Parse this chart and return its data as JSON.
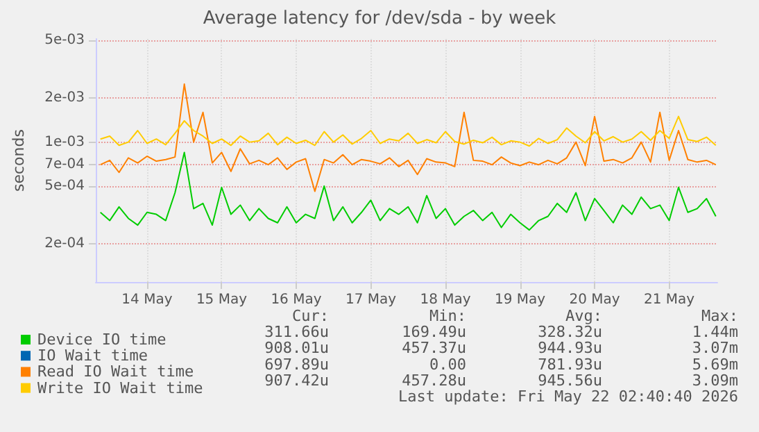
{
  "chart_data": {
    "type": "line",
    "title": "Average latency for /dev/sda - by week",
    "ylabel": "seconds",
    "log": "y",
    "grid": true,
    "legend": "bottom left",
    "marker": "none",
    "line_style": "solid",
    "x": [
      "2026-05-13T21:00",
      "2026-05-14T00:00",
      "2026-05-14T03:00",
      "2026-05-14T06:00",
      "2026-05-14T09:00",
      "2026-05-14T12:00",
      "2026-05-14T15:00",
      "2026-05-14T18:00",
      "2026-05-14T21:00",
      "2026-05-15T00:00",
      "2026-05-15T03:00",
      "2026-05-15T06:00",
      "2026-05-15T09:00",
      "2026-05-15T12:00",
      "2026-05-15T15:00",
      "2026-05-15T18:00",
      "2026-05-15T21:00",
      "2026-05-16T00:00",
      "2026-05-16T03:00",
      "2026-05-16T06:00",
      "2026-05-16T09:00",
      "2026-05-16T12:00",
      "2026-05-16T15:00",
      "2026-05-16T18:00",
      "2026-05-16T21:00",
      "2026-05-17T00:00",
      "2026-05-17T03:00",
      "2026-05-17T06:00",
      "2026-05-17T09:00",
      "2026-05-17T12:00",
      "2026-05-17T15:00",
      "2026-05-17T18:00",
      "2026-05-17T21:00",
      "2026-05-18T00:00",
      "2026-05-18T03:00",
      "2026-05-18T06:00",
      "2026-05-18T09:00",
      "2026-05-18T12:00",
      "2026-05-18T15:00",
      "2026-05-18T18:00",
      "2026-05-18T21:00",
      "2026-05-19T00:00",
      "2026-05-19T03:00",
      "2026-05-19T06:00",
      "2026-05-19T09:00",
      "2026-05-19T12:00",
      "2026-05-19T15:00",
      "2026-05-19T18:00",
      "2026-05-19T21:00",
      "2026-05-20T00:00",
      "2026-05-20T03:00",
      "2026-05-20T06:00",
      "2026-05-20T09:00",
      "2026-05-20T12:00",
      "2026-05-20T15:00",
      "2026-05-20T18:00",
      "2026-05-20T21:00",
      "2026-05-21T00:00",
      "2026-05-21T03:00",
      "2026-05-21T06:00",
      "2026-05-21T09:00",
      "2026-05-21T12:00",
      "2026-05-21T15:00",
      "2026-05-21T18:00",
      "2026-05-21T21:00",
      "2026-05-22T00:00",
      "2026-05-22T03:00"
    ],
    "xlim": [
      "2026-05-13T19:30",
      "2026-05-22T03:30"
    ],
    "xticks": [
      {
        "value": "2026-05-14T12:00",
        "label": "14 May"
      },
      {
        "value": "2026-05-15T12:00",
        "label": "15 May"
      },
      {
        "value": "2026-05-16T12:00",
        "label": "16 May"
      },
      {
        "value": "2026-05-17T12:00",
        "label": "17 May"
      },
      {
        "value": "2026-05-18T12:00",
        "label": "18 May"
      },
      {
        "value": "2026-05-19T12:00",
        "label": "19 May"
      },
      {
        "value": "2026-05-20T12:00",
        "label": "20 May"
      },
      {
        "value": "2026-05-21T12:00",
        "label": "21 May"
      }
    ],
    "ylim": [
      0.00011,
      0.0051
    ],
    "yticks": [
      {
        "value": 0.0002,
        "label": "2e-04"
      },
      {
        "value": 0.0005,
        "label": "5e-04"
      },
      {
        "value": 0.0007,
        "label": "7e-04"
      },
      {
        "value": 0.001,
        "label": "1e-03"
      },
      {
        "value": 0.002,
        "label": "2e-03"
      },
      {
        "value": 0.005,
        "label": "5e-03"
      }
    ],
    "series": [
      {
        "name": "Device IO time",
        "color": "#00cc00",
        "values": [
          0.00033,
          0.00029,
          0.00036,
          0.0003,
          0.00027,
          0.00033,
          0.00032,
          0.00029,
          0.00045,
          0.00085,
          0.00035,
          0.00038,
          0.00027,
          0.00049,
          0.00032,
          0.00037,
          0.00029,
          0.00035,
          0.0003,
          0.00028,
          0.00036,
          0.00028,
          0.00032,
          0.0003,
          0.0005,
          0.00029,
          0.00036,
          0.00028,
          0.00033,
          0.0004,
          0.00029,
          0.00035,
          0.00032,
          0.00036,
          0.00028,
          0.00043,
          0.0003,
          0.00035,
          0.00027,
          0.00031,
          0.00034,
          0.00029,
          0.00033,
          0.00026,
          0.00032,
          0.00028,
          0.00025,
          0.00029,
          0.00031,
          0.00038,
          0.00033,
          0.00045,
          0.00029,
          0.00041,
          0.00034,
          0.00028,
          0.00037,
          0.00032,
          0.00042,
          0.00035,
          0.00037,
          0.00029,
          0.00049,
          0.00033,
          0.00035,
          0.00041,
          0.00031
        ]
      },
      {
        "name": "IO Wait time",
        "color": "#0066b3",
        "values": [
          null,
          null,
          null,
          null,
          null,
          null,
          null,
          null,
          null,
          null,
          null,
          null,
          null,
          null,
          null,
          null,
          null,
          null,
          null,
          null,
          null,
          null,
          null,
          null,
          null,
          null,
          null,
          null,
          null,
          null,
          null,
          null,
          null,
          null,
          null,
          null,
          null,
          null,
          null,
          null,
          null,
          null,
          null,
          null,
          null,
          null,
          null,
          null,
          null,
          null,
          null,
          null,
          null,
          null,
          null,
          null,
          null,
          null,
          null,
          null,
          null,
          null,
          null,
          null,
          null,
          null,
          null
        ]
      },
      {
        "name": "Read IO Wait time",
        "color": "#ff8000",
        "values": [
          0.0007,
          0.00075,
          0.00062,
          0.00078,
          0.00072,
          0.0008,
          0.00074,
          0.00076,
          0.00079,
          0.0025,
          0.001,
          0.0016,
          0.00072,
          0.00085,
          0.00063,
          0.0009,
          0.00071,
          0.00075,
          0.0007,
          0.00078,
          0.00065,
          0.00073,
          0.00077,
          0.00046,
          0.00076,
          0.00072,
          0.00082,
          0.0007,
          0.00076,
          0.00074,
          0.00071,
          0.00078,
          0.00068,
          0.00075,
          0.0006,
          0.00077,
          0.00073,
          0.00072,
          0.00068,
          0.0016,
          0.00075,
          0.00074,
          0.0007,
          0.00079,
          0.00072,
          0.00069,
          0.00073,
          0.0007,
          0.00075,
          0.00071,
          0.00078,
          0.001,
          0.00069,
          0.0015,
          0.00074,
          0.00076,
          0.00072,
          0.00078,
          0.001,
          0.00073,
          0.0016,
          0.00075,
          0.0012,
          0.00076,
          0.00073,
          0.00075,
          0.0007
        ]
      },
      {
        "name": "Write IO Wait time",
        "color": "#ffcc00",
        "values": [
          0.00105,
          0.0011,
          0.00095,
          0.001,
          0.0012,
          0.00098,
          0.00105,
          0.00096,
          0.00115,
          0.0014,
          0.0012,
          0.0011,
          0.00098,
          0.00105,
          0.00095,
          0.0011,
          0.001,
          0.00102,
          0.00115,
          0.00096,
          0.00108,
          0.00098,
          0.00103,
          0.00095,
          0.00118,
          0.001,
          0.00112,
          0.00097,
          0.00106,
          0.0012,
          0.00098,
          0.00105,
          0.00102,
          0.00115,
          0.00098,
          0.00104,
          0.00099,
          0.00118,
          0.00101,
          0.00097,
          0.00103,
          0.00099,
          0.00108,
          0.00096,
          0.00102,
          0.001,
          0.00094,
          0.00106,
          0.00098,
          0.00104,
          0.00125,
          0.0011,
          0.00099,
          0.00118,
          0.00102,
          0.00109,
          0.001,
          0.00105,
          0.00118,
          0.00103,
          0.0012,
          0.00106,
          0.0015,
          0.00104,
          0.00101,
          0.00108,
          0.00095
        ]
      }
    ],
    "annotations": [
      "Cur:",
      "Min:",
      "Avg:",
      "Max:",
      "311.66u",
      "169.49u",
      "328.32u",
      "1.44m",
      "908.01u",
      "457.37u",
      "944.93u",
      "3.07m",
      "697.89u",
      "0.00",
      "781.93u",
      "5.69m",
      "907.42u",
      "457.28u",
      "945.56u",
      "3.09m",
      "Last update: Fri May 22 02:40:40 2026"
    ]
  }
}
